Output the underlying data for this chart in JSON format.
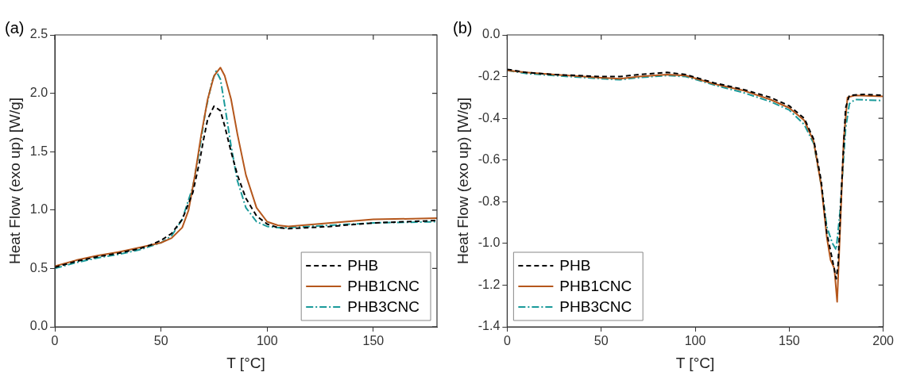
{
  "chart_data": [
    {
      "type": "line",
      "title": "(a)",
      "xlabel": "T [°C]",
      "ylabel": "Heat Flow (exo up) [W/g]",
      "xlim": [
        0,
        180
      ],
      "xticks": [
        0,
        50,
        100,
        150
      ],
      "ylim": [
        0,
        2.5
      ],
      "yticks": [
        {
          "value": 0,
          "label": "0.0"
        },
        0.5,
        {
          "value": 1,
          "label": "1.0"
        },
        1.5,
        {
          "value": 2,
          "label": "2.0"
        },
        2.5
      ],
      "grid": false,
      "legend": "bottom right",
      "marker": "none",
      "series": [
        {
          "name": "PHB",
          "color": "#000000",
          "line_style": "dashed",
          "x": [
            0,
            10,
            20,
            30,
            40,
            45,
            50,
            55,
            60,
            65,
            68,
            70,
            72,
            75,
            78,
            80,
            83,
            86,
            90,
            95,
            100,
            105,
            110,
            130,
            150,
            180
          ],
          "values": [
            0.51,
            0.56,
            0.6,
            0.63,
            0.67,
            0.7,
            0.74,
            0.8,
            0.92,
            1.15,
            1.4,
            1.6,
            1.78,
            1.89,
            1.85,
            1.72,
            1.5,
            1.3,
            1.1,
            0.95,
            0.88,
            0.85,
            0.84,
            0.86,
            0.89,
            0.91
          ]
        },
        {
          "name": "PHB1CNC",
          "color": "#b5571c",
          "line_style": "solid",
          "x": [
            0,
            10,
            20,
            30,
            40,
            50,
            55,
            60,
            63,
            66,
            69,
            72,
            75,
            78,
            80,
            83,
            86,
            90,
            95,
            100,
            105,
            110,
            130,
            150,
            180
          ],
          "values": [
            0.52,
            0.57,
            0.61,
            0.64,
            0.68,
            0.72,
            0.76,
            0.85,
            1.0,
            1.3,
            1.65,
            1.95,
            2.15,
            2.22,
            2.15,
            1.95,
            1.65,
            1.3,
            1.02,
            0.9,
            0.87,
            0.86,
            0.89,
            0.92,
            0.93
          ]
        },
        {
          "name": "PHB3CNC",
          "color": "#1a9a9a",
          "line_style": "dashdot",
          "x": [
            0,
            10,
            20,
            30,
            40,
            50,
            55,
            60,
            65,
            68,
            71,
            74,
            76,
            78,
            80,
            83,
            86,
            90,
            95,
            100,
            105,
            110,
            130,
            150,
            180
          ],
          "values": [
            0.5,
            0.55,
            0.59,
            0.62,
            0.66,
            0.72,
            0.78,
            0.92,
            1.2,
            1.5,
            1.85,
            2.1,
            2.19,
            2.12,
            1.9,
            1.55,
            1.25,
            1.02,
            0.9,
            0.86,
            0.85,
            0.85,
            0.87,
            0.89,
            0.9
          ]
        }
      ]
    },
    {
      "type": "line",
      "title": "(b)",
      "xlabel": "T [°C]",
      "ylabel": "Heat Flow (exo up) [W/g]",
      "xlim": [
        0,
        200
      ],
      "xticks": [
        0,
        50,
        100,
        150,
        200
      ],
      "ylim": [
        -1.4,
        0
      ],
      "yticks": [
        -1.4,
        -1.2,
        {
          "value": -1,
          "label": "-1.0"
        },
        -0.8,
        -0.6,
        -0.4,
        -0.2,
        {
          "value": 0,
          "label": "0.0"
        }
      ],
      "grid": false,
      "legend": "bottom left",
      "marker": "none",
      "series": [
        {
          "name": "PHB",
          "color": "#000000",
          "line_style": "dashed",
          "x": [
            0,
            10,
            25,
            50,
            60,
            70,
            85,
            95,
            110,
            125,
            140,
            150,
            158,
            163,
            167,
            170,
            173,
            175,
            176,
            178,
            180,
            182,
            190,
            200
          ],
          "values": [
            -0.165,
            -0.18,
            -0.19,
            -0.2,
            -0.2,
            -0.19,
            -0.18,
            -0.19,
            -0.23,
            -0.26,
            -0.3,
            -0.34,
            -0.4,
            -0.5,
            -0.7,
            -0.95,
            -1.08,
            -1.17,
            -1.1,
            -0.7,
            -0.35,
            -0.29,
            -0.285,
            -0.29
          ]
        },
        {
          "name": "PHB1CNC",
          "color": "#b5571c",
          "line_style": "solid",
          "x": [
            0,
            10,
            25,
            50,
            60,
            70,
            85,
            95,
            110,
            125,
            140,
            150,
            158,
            163,
            167,
            170,
            172,
            174,
            175.5,
            177,
            179,
            181,
            185,
            200
          ],
          "values": [
            -0.17,
            -0.18,
            -0.19,
            -0.205,
            -0.21,
            -0.2,
            -0.19,
            -0.195,
            -0.235,
            -0.265,
            -0.31,
            -0.35,
            -0.41,
            -0.51,
            -0.72,
            -0.97,
            -1.08,
            -1.12,
            -1.28,
            -0.95,
            -0.5,
            -0.3,
            -0.29,
            -0.295
          ]
        },
        {
          "name": "PHB3CNC",
          "color": "#1a9a9a",
          "line_style": "dashdot",
          "x": [
            0,
            10,
            25,
            50,
            60,
            70,
            85,
            95,
            110,
            125,
            140,
            150,
            158,
            163,
            167,
            170,
            173,
            175,
            177,
            180,
            182,
            185,
            200
          ],
          "values": [
            -0.17,
            -0.185,
            -0.195,
            -0.21,
            -0.215,
            -0.205,
            -0.195,
            -0.2,
            -0.24,
            -0.275,
            -0.32,
            -0.36,
            -0.43,
            -0.52,
            -0.72,
            -0.92,
            -1.0,
            -1.03,
            -0.85,
            -0.45,
            -0.33,
            -0.31,
            -0.315
          ]
        }
      ]
    }
  ]
}
